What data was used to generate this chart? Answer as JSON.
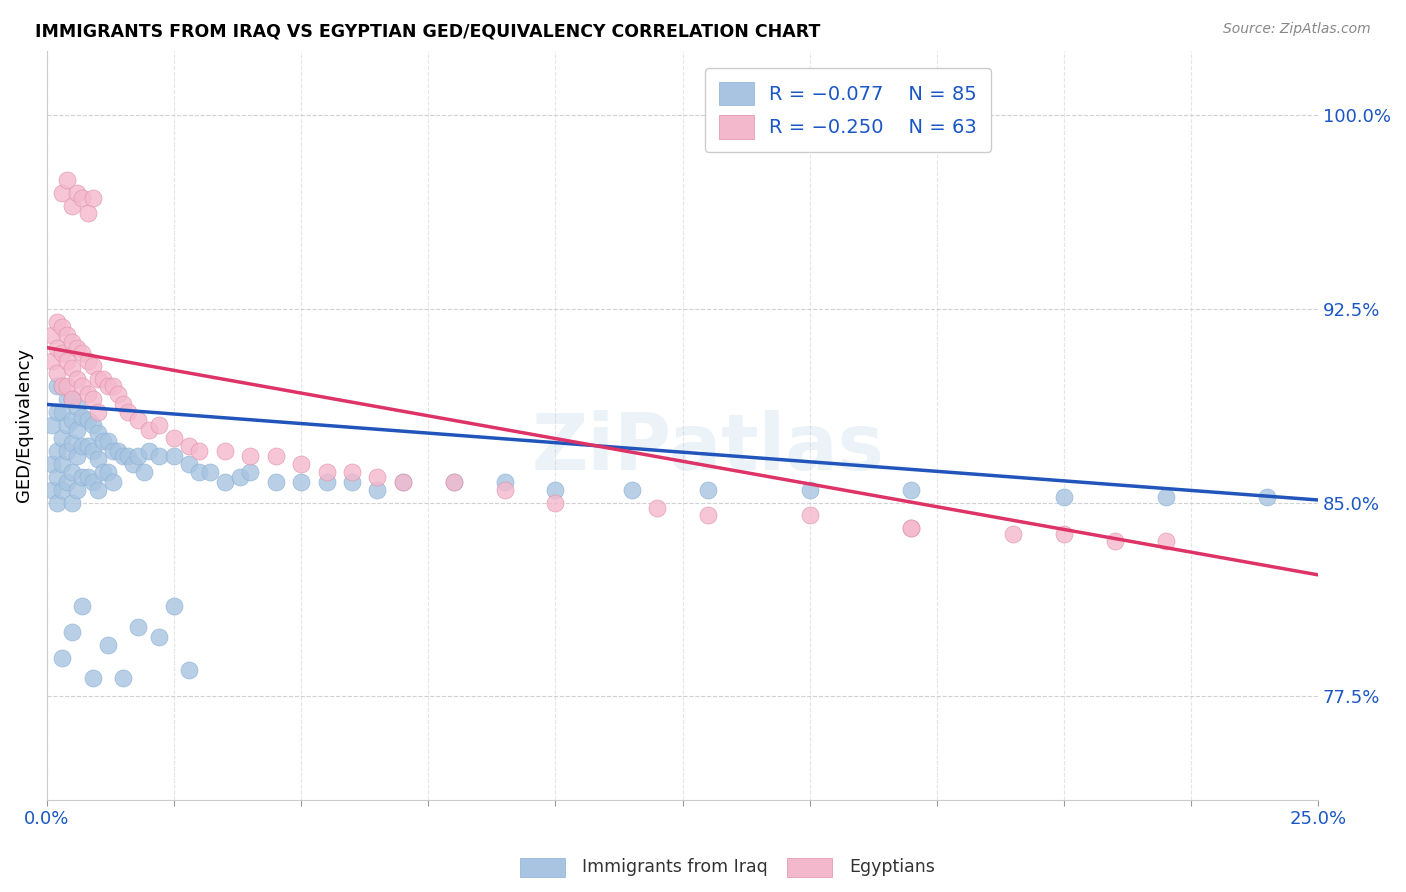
{
  "title": "IMMIGRANTS FROM IRAQ VS EGYPTIAN GED/EQUIVALENCY CORRELATION CHART",
  "source": "Source: ZipAtlas.com",
  "ylabel": "GED/Equivalency",
  "yticks": [
    0.775,
    0.85,
    0.925,
    1.0
  ],
  "ytick_labels": [
    "77.5%",
    "85.0%",
    "92.5%",
    "100.0%"
  ],
  "xmin": 0.0,
  "xmax": 0.25,
  "ymin": 0.735,
  "ymax": 1.025,
  "color_iraq": "#a8c4e0",
  "color_egypt": "#f4b8cc",
  "line_color_iraq": "#2255bb",
  "line_color_egypt": "#dd3366",
  "legend_label1": "Immigrants from Iraq",
  "legend_label2": "Egyptians",
  "iraq_line_x0": 0.0,
  "iraq_line_y0": 0.888,
  "iraq_line_x1": 0.25,
  "iraq_line_y1": 0.851,
  "egypt_line_x0": 0.0,
  "egypt_line_y0": 0.91,
  "egypt_line_x1": 0.25,
  "egypt_line_y1": 0.822,
  "iraq_x": [
    0.001,
    0.001,
    0.001,
    0.002,
    0.002,
    0.002,
    0.002,
    0.002,
    0.003,
    0.003,
    0.003,
    0.003,
    0.003,
    0.004,
    0.004,
    0.004,
    0.004,
    0.005,
    0.005,
    0.005,
    0.005,
    0.005,
    0.006,
    0.006,
    0.006,
    0.006,
    0.007,
    0.007,
    0.007,
    0.008,
    0.008,
    0.008,
    0.009,
    0.009,
    0.009,
    0.01,
    0.01,
    0.01,
    0.011,
    0.011,
    0.012,
    0.012,
    0.013,
    0.013,
    0.014,
    0.015,
    0.016,
    0.017,
    0.018,
    0.019,
    0.02,
    0.022,
    0.025,
    0.028,
    0.03,
    0.032,
    0.035,
    0.038,
    0.04,
    0.045,
    0.05,
    0.055,
    0.06,
    0.065,
    0.07,
    0.08,
    0.09,
    0.1,
    0.115,
    0.13,
    0.15,
    0.17,
    0.2,
    0.22,
    0.24,
    0.003,
    0.005,
    0.007,
    0.009,
    0.012,
    0.015,
    0.018,
    0.022,
    0.025,
    0.028
  ],
  "iraq_y": [
    0.88,
    0.865,
    0.855,
    0.895,
    0.885,
    0.87,
    0.86,
    0.85,
    0.895,
    0.885,
    0.875,
    0.865,
    0.855,
    0.89,
    0.88,
    0.87,
    0.858,
    0.89,
    0.882,
    0.873,
    0.862,
    0.85,
    0.887,
    0.878,
    0.868,
    0.855,
    0.883,
    0.872,
    0.86,
    0.882,
    0.872,
    0.86,
    0.88,
    0.87,
    0.858,
    0.877,
    0.867,
    0.855,
    0.874,
    0.862,
    0.874,
    0.862,
    0.87,
    0.858,
    0.87,
    0.868,
    0.868,
    0.865,
    0.868,
    0.862,
    0.87,
    0.868,
    0.868,
    0.865,
    0.862,
    0.862,
    0.858,
    0.86,
    0.862,
    0.858,
    0.858,
    0.858,
    0.858,
    0.855,
    0.858,
    0.858,
    0.858,
    0.855,
    0.855,
    0.855,
    0.855,
    0.855,
    0.852,
    0.852,
    0.852,
    0.79,
    0.8,
    0.81,
    0.782,
    0.795,
    0.782,
    0.802,
    0.798,
    0.81,
    0.785
  ],
  "egypt_x": [
    0.001,
    0.001,
    0.002,
    0.002,
    0.002,
    0.003,
    0.003,
    0.003,
    0.004,
    0.004,
    0.004,
    0.005,
    0.005,
    0.005,
    0.006,
    0.006,
    0.007,
    0.007,
    0.008,
    0.008,
    0.009,
    0.009,
    0.01,
    0.01,
    0.011,
    0.012,
    0.013,
    0.014,
    0.015,
    0.016,
    0.018,
    0.02,
    0.022,
    0.025,
    0.028,
    0.03,
    0.035,
    0.04,
    0.045,
    0.05,
    0.055,
    0.06,
    0.065,
    0.07,
    0.08,
    0.09,
    0.1,
    0.12,
    0.13,
    0.15,
    0.17,
    0.2,
    0.22,
    0.003,
    0.004,
    0.005,
    0.006,
    0.007,
    0.008,
    0.009,
    0.17,
    0.19,
    0.21
  ],
  "egypt_y": [
    0.915,
    0.905,
    0.92,
    0.91,
    0.9,
    0.918,
    0.908,
    0.895,
    0.915,
    0.905,
    0.895,
    0.912,
    0.902,
    0.89,
    0.91,
    0.898,
    0.908,
    0.895,
    0.905,
    0.892,
    0.903,
    0.89,
    0.898,
    0.885,
    0.898,
    0.895,
    0.895,
    0.892,
    0.888,
    0.885,
    0.882,
    0.878,
    0.88,
    0.875,
    0.872,
    0.87,
    0.87,
    0.868,
    0.868,
    0.865,
    0.862,
    0.862,
    0.86,
    0.858,
    0.858,
    0.855,
    0.85,
    0.848,
    0.845,
    0.845,
    0.84,
    0.838,
    0.835,
    0.97,
    0.975,
    0.965,
    0.97,
    0.968,
    0.962,
    0.968,
    0.84,
    0.838,
    0.835
  ]
}
